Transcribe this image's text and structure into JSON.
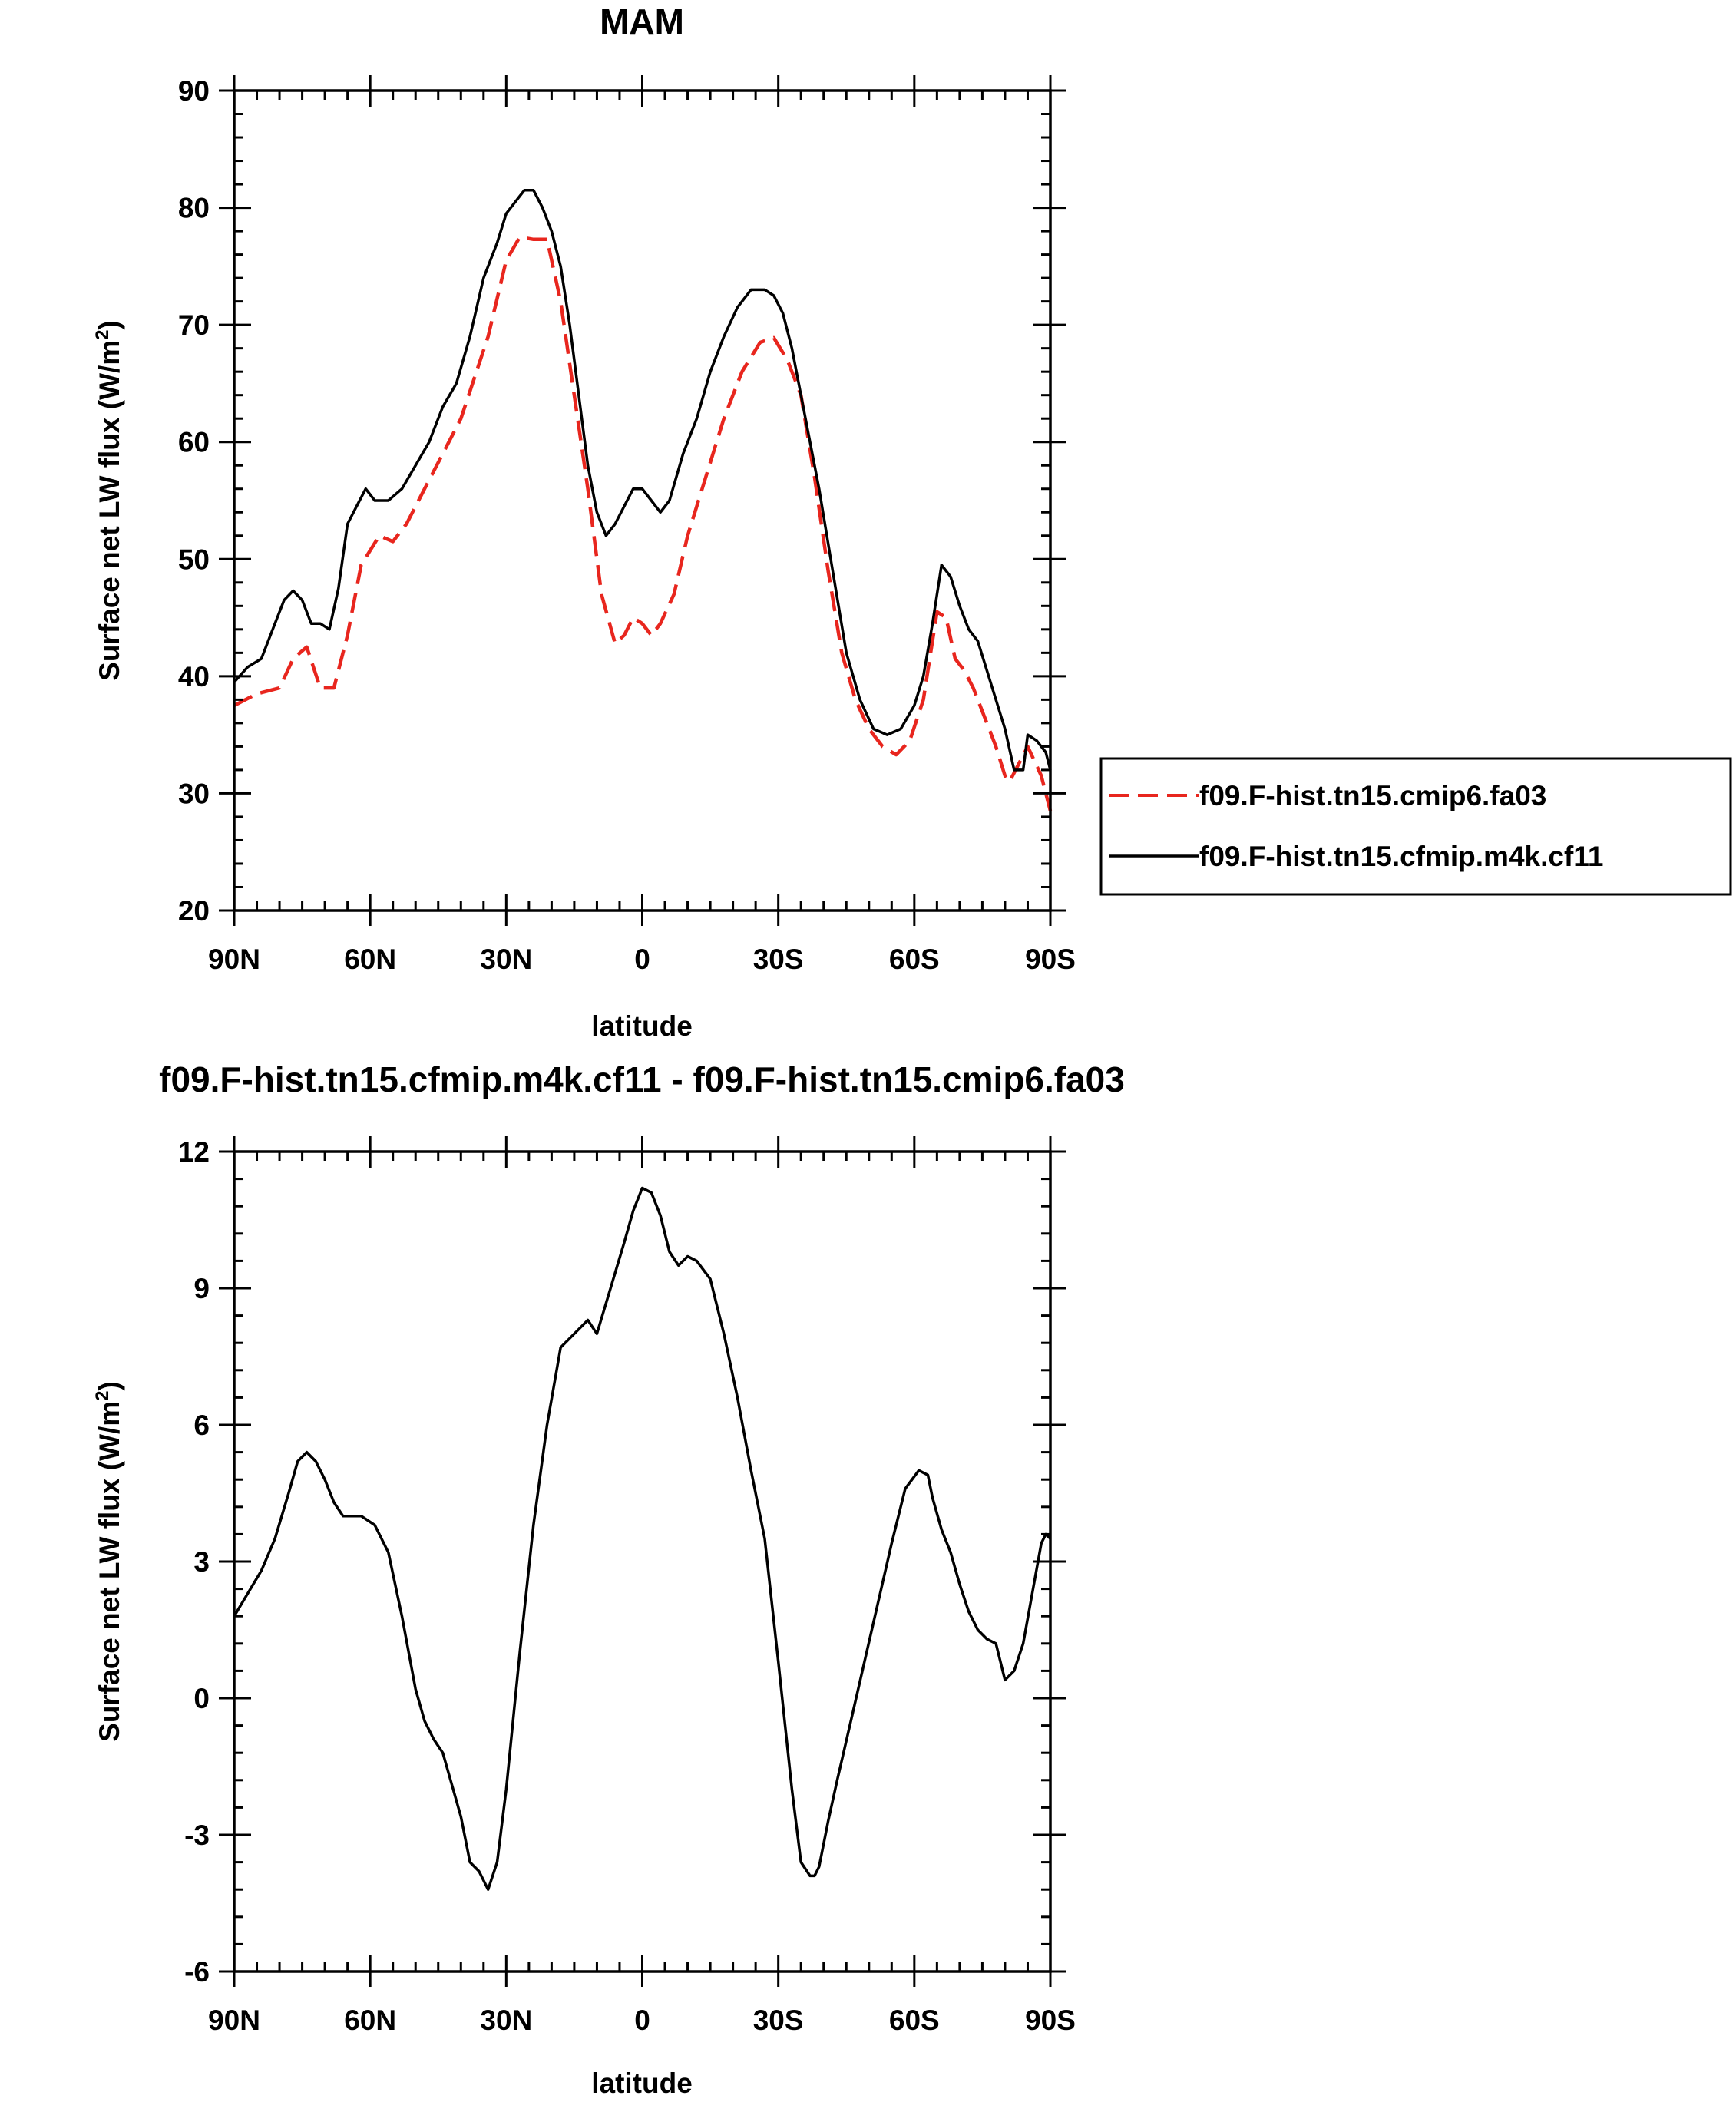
{
  "chart_data": [
    {
      "type": "line",
      "title": "MAM",
      "xlabel": "latitude",
      "ylabel": "Surface net LW flux (W/m",
      "ylabel_sup": "2",
      "ylabel_close": ")",
      "xlim": [
        90,
        -90
      ],
      "ylim": [
        20,
        90
      ],
      "x_ticks": [
        90,
        60,
        30,
        0,
        -30,
        -60,
        -90
      ],
      "x_tick_labels": [
        "90N",
        "60N",
        "30N",
        "0",
        "30S",
        "60S",
        "90S"
      ],
      "y_ticks": [
        20,
        30,
        40,
        50,
        60,
        70,
        80,
        90
      ],
      "y_tick_labels": [
        "20",
        "30",
        "40",
        "50",
        "60",
        "70",
        "80",
        "90"
      ],
      "grid": false,
      "legend_position": "right",
      "series": [
        {
          "name": "f09.F-hist.tn15.cmip6.fa03",
          "color": "#e8261e",
          "dash": "dashed",
          "x": [
            90,
            85,
            80,
            77,
            74,
            71,
            68,
            65,
            62,
            58,
            55,
            52,
            48,
            44,
            40,
            37,
            34,
            30,
            27,
            24,
            21,
            18,
            15,
            12,
            9,
            6,
            4,
            2,
            0,
            -2,
            -4,
            -7,
            -10,
            -14,
            -18,
            -22,
            -26,
            -29,
            -32,
            -35,
            -38,
            -41,
            -44,
            -47,
            -50,
            -53,
            -56,
            -59,
            -62,
            -65,
            -67,
            -69,
            -71,
            -73,
            -76,
            -78,
            -80,
            -81,
            -83,
            -85,
            -88,
            -90
          ],
          "y": [
            37.5,
            38.5,
            39,
            41.5,
            42.5,
            39,
            39,
            43.5,
            49.5,
            52,
            51.5,
            53,
            56,
            59,
            62,
            65.5,
            69,
            75.5,
            77.5,
            77.3,
            77.3,
            72,
            64,
            56,
            47,
            42.8,
            43.5,
            45,
            44.5,
            43.5,
            44.5,
            47,
            52,
            57,
            62,
            66,
            68.5,
            68.9,
            67,
            64,
            57,
            49,
            42,
            38,
            35.5,
            34,
            33.3,
            34.5,
            38,
            45.5,
            45,
            41.5,
            40.5,
            39,
            36,
            34,
            31.5,
            31,
            32.5,
            34,
            31.5,
            28.5
          ]
        },
        {
          "name": "f09.F-hist.tn15.cfmip.m4k.cf11",
          "color": "#000000",
          "dash": "solid",
          "x": [
            90,
            87,
            84,
            81,
            79,
            77,
            75,
            73,
            71,
            69,
            67,
            65,
            63,
            61,
            59,
            56,
            53,
            50,
            47,
            44,
            41,
            38,
            35,
            32,
            30,
            28,
            26,
            24,
            22,
            20,
            18,
            16,
            14,
            12,
            10,
            8,
            6,
            4,
            2,
            0,
            -2,
            -4,
            -6,
            -9,
            -12,
            -15,
            -18,
            -21,
            -24,
            -27,
            -29,
            -31,
            -33,
            -36,
            -39,
            -42,
            -45,
            -48,
            -51,
            -54,
            -57,
            -60,
            -62,
            -64,
            -66,
            -68,
            -70,
            -72,
            -74,
            -76,
            -78,
            -80,
            -82,
            -84,
            -85,
            -87,
            -89,
            -90
          ],
          "y": [
            39.5,
            40.8,
            41.5,
            44.5,
            46.5,
            47.3,
            46.5,
            44.5,
            44.5,
            44,
            47.5,
            53,
            54.5,
            56,
            55,
            55,
            56,
            58,
            60,
            63,
            65,
            69,
            74,
            77,
            79.5,
            80.5,
            81.5,
            81.5,
            80,
            78,
            75,
            70,
            64,
            58,
            54,
            52,
            53,
            54.5,
            56,
            56,
            55,
            54,
            55,
            59,
            62,
            66,
            69,
            71.5,
            73,
            73,
            72.5,
            71,
            68,
            62,
            56,
            49,
            42,
            38,
            35.5,
            35,
            35.5,
            37.5,
            40,
            44.5,
            49.5,
            48.5,
            46,
            44,
            43,
            40.5,
            38,
            35.5,
            32,
            32,
            35,
            34.5,
            33.5,
            32
          ]
        }
      ]
    },
    {
      "type": "line",
      "title": "f09.F-hist.tn15.cfmip.m4k.cf11 - f09.F-hist.tn15.cmip6.fa03",
      "xlabel": "latitude",
      "ylabel": "Surface net LW flux (W/m",
      "ylabel_sup": "2",
      "ylabel_close": ")",
      "xlim": [
        90,
        -90
      ],
      "ylim": [
        -6,
        12
      ],
      "x_ticks": [
        90,
        60,
        30,
        0,
        -30,
        -60,
        -90
      ],
      "x_tick_labels": [
        "90N",
        "60N",
        "30N",
        "0",
        "30S",
        "60S",
        "90S"
      ],
      "y_ticks": [
        -6,
        -3,
        0,
        3,
        6,
        9,
        12
      ],
      "y_tick_labels": [
        "-6",
        "-3",
        "0",
        "3",
        "6",
        "9",
        "12"
      ],
      "grid": false,
      "series": [
        {
          "name": "",
          "color": "#000000",
          "dash": "solid",
          "x": [
            90,
            87,
            84,
            81,
            78,
            76,
            74,
            72,
            70,
            68,
            66,
            64,
            62,
            59,
            56,
            53,
            50,
            48,
            46,
            44,
            42,
            40,
            38,
            36,
            34,
            32,
            30,
            27,
            24,
            21,
            18,
            15,
            12,
            10,
            7,
            4,
            2,
            0,
            -2,
            -4,
            -6,
            -8,
            -10,
            -12,
            -15,
            -18,
            -21,
            -24,
            -27,
            -30,
            -33,
            -35,
            -37,
            -38,
            -39,
            -40,
            -41,
            -43,
            -46,
            -49,
            -52,
            -55,
            -58,
            -61,
            -63,
            -64,
            -66,
            -68,
            -70,
            -72,
            -74,
            -76,
            -78,
            -80,
            -82,
            -84,
            -86,
            -88,
            -89,
            -90
          ],
          "y": [
            1.8,
            2.3,
            2.8,
            3.5,
            4.5,
            5.2,
            5.4,
            5.2,
            4.8,
            4.3,
            4.0,
            4.0,
            4.0,
            3.8,
            3.2,
            1.8,
            0.2,
            -0.5,
            -0.9,
            -1.2,
            -1.9,
            -2.6,
            -3.6,
            -3.8,
            -4.2,
            -3.6,
            -2.0,
            1.0,
            3.8,
            6.0,
            7.7,
            8.0,
            8.3,
            8.0,
            9.0,
            10.0,
            10.7,
            11.2,
            11.1,
            10.6,
            9.8,
            9.5,
            9.7,
            9.6,
            9.2,
            8.0,
            6.6,
            5.0,
            3.5,
            0.8,
            -2.0,
            -3.6,
            -3.9,
            -3.9,
            -3.7,
            -3.2,
            -2.7,
            -1.8,
            -0.5,
            0.8,
            2.1,
            3.4,
            4.6,
            5.0,
            4.9,
            4.4,
            3.7,
            3.2,
            2.5,
            1.9,
            1.5,
            1.3,
            1.2,
            0.4,
            0.6,
            1.2,
            2.3,
            3.4,
            3.6,
            3.5
          ]
        }
      ]
    }
  ]
}
